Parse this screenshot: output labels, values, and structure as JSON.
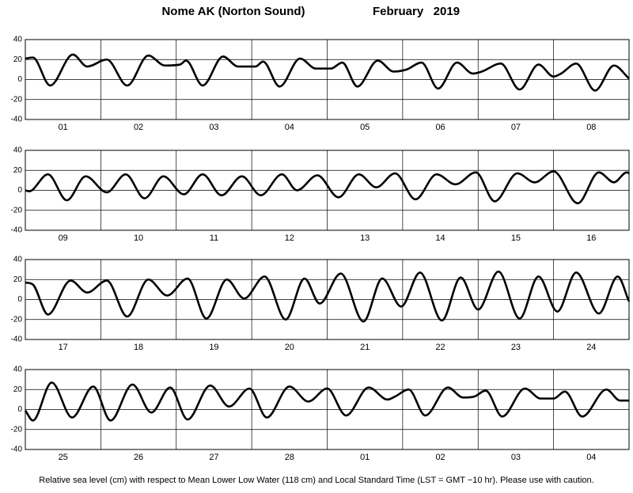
{
  "title": "Nome AK (Norton Sound)",
  "month": "February   2019",
  "note": "Relative sea level (cm) with respect to Mean Lower Low Water (118 cm) and Local Standard Time (LST = GMT −10 hr). Please use with caution.",
  "chart_data": [
    {
      "type": "line",
      "categories": [
        "01",
        "02",
        "03",
        "04",
        "05",
        "06",
        "07",
        "08"
      ],
      "xlim": [
        0,
        8
      ],
      "xticks": [
        0,
        1,
        2,
        3,
        4,
        5,
        6,
        7,
        8
      ],
      "ylim": [
        -40,
        40
      ],
      "yticks": [
        -40,
        -20,
        0,
        20,
        40
      ],
      "grid": true,
      "x": [
        0,
        0.1,
        0.33,
        0.63,
        0.82,
        1.08,
        1.35,
        1.63,
        1.85,
        2.05,
        2.13,
        2.35,
        2.62,
        2.82,
        3.05,
        3.15,
        3.37,
        3.64,
        3.85,
        4.05,
        4.2,
        4.4,
        4.67,
        4.88,
        5.05,
        5.25,
        5.47,
        5.72,
        5.93,
        6.05,
        6.3,
        6.55,
        6.8,
        7.0,
        7.1,
        7.3,
        7.55,
        7.8,
        8.0
      ],
      "series": [
        {
          "color": "#000000",
          "values": [
            21,
            22,
            -6,
            25,
            13,
            20,
            -6,
            24,
            14,
            15,
            19,
            -6,
            23,
            13,
            13,
            18,
            -7,
            21,
            11,
            11,
            17,
            -7,
            19,
            8,
            10,
            17,
            -9,
            17,
            6,
            8,
            16,
            -10,
            15,
            3,
            6,
            16,
            -11,
            14,
            1
          ]
        }
      ]
    },
    {
      "type": "line",
      "categories": [
        "09",
        "10",
        "11",
        "12",
        "13",
        "14",
        "15",
        "16"
      ],
      "xlim": [
        0,
        8
      ],
      "xticks": [
        0,
        1,
        2,
        3,
        4,
        5,
        6,
        7,
        8
      ],
      "ylim": [
        -40,
        40
      ],
      "yticks": [
        -40,
        -20,
        0,
        20,
        40
      ],
      "grid": true,
      "x": [
        0,
        0.05,
        0.3,
        0.55,
        0.8,
        1.08,
        1.33,
        1.58,
        1.83,
        2.1,
        2.35,
        2.6,
        2.87,
        3.12,
        3.4,
        3.6,
        3.87,
        4.15,
        4.42,
        4.65,
        4.9,
        5.17,
        5.45,
        5.7,
        5.97,
        6.22,
        6.52,
        6.75,
        7.0,
        7.32,
        7.6,
        7.8,
        7.97,
        8.0
      ],
      "series": [
        {
          "color": "#000000",
          "values": [
            0,
            -1,
            16,
            -10,
            14,
            -2,
            16,
            -8,
            14,
            -4,
            16,
            -5,
            14,
            -5,
            16,
            0,
            15,
            -7,
            16,
            3,
            17,
            -9,
            16,
            6,
            18,
            -11,
            17,
            8,
            19,
            -13,
            18,
            8,
            18,
            17
          ]
        }
      ]
    },
    {
      "type": "line",
      "categories": [
        "17",
        "18",
        "19",
        "20",
        "21",
        "22",
        "23",
        "24"
      ],
      "xlim": [
        0,
        8
      ],
      "xticks": [
        0,
        1,
        2,
        3,
        4,
        5,
        6,
        7,
        8
      ],
      "ylim": [
        -40,
        40
      ],
      "yticks": [
        -40,
        -20,
        0,
        20,
        40
      ],
      "grid": true,
      "x": [
        0,
        0.1,
        0.3,
        0.6,
        0.82,
        1.08,
        1.35,
        1.63,
        1.88,
        2.15,
        2.4,
        2.67,
        2.9,
        3.17,
        3.45,
        3.7,
        3.9,
        4.18,
        4.48,
        4.73,
        4.98,
        5.23,
        5.52,
        5.77,
        6.0,
        6.27,
        6.55,
        6.8,
        7.05,
        7.3,
        7.6,
        7.85,
        8.0
      ],
      "series": [
        {
          "color": "#000000",
          "values": [
            17,
            15,
            -15,
            19,
            7,
            19,
            -17,
            20,
            4,
            21,
            -19,
            20,
            1,
            23,
            -20,
            21,
            -4,
            26,
            -22,
            21,
            -7,
            27,
            -21,
            22,
            -10,
            28,
            -19,
            23,
            -12,
            27,
            -14,
            23,
            -2
          ]
        }
      ]
    },
    {
      "type": "line",
      "categories": [
        "25",
        "26",
        "27",
        "28",
        "01",
        "02",
        "03",
        "04"
      ],
      "xlim": [
        0,
        8
      ],
      "xticks": [
        0,
        1,
        2,
        3,
        4,
        5,
        6,
        7,
        8
      ],
      "ylim": [
        -40,
        40
      ],
      "yticks": [
        -40,
        -20,
        0,
        20,
        40
      ],
      "grid": true,
      "x": [
        0,
        0.1,
        0.35,
        0.62,
        0.9,
        1.13,
        1.42,
        1.67,
        1.92,
        2.15,
        2.45,
        2.7,
        2.97,
        3.2,
        3.5,
        3.75,
        4.0,
        4.25,
        4.55,
        4.8,
        4.9,
        5.08,
        5.3,
        5.6,
        5.8,
        5.95,
        6.1,
        6.32,
        6.62,
        6.83,
        7.0,
        7.15,
        7.38,
        7.7,
        7.88,
        8.0
      ],
      "series": [
        {
          "color": "#000000",
          "values": [
            -1,
            -11,
            27,
            -8,
            23,
            -11,
            25,
            -3,
            22,
            -10,
            24,
            3,
            21,
            -8,
            23,
            8,
            21,
            -6,
            22,
            10,
            13,
            20,
            -6,
            22,
            12,
            13,
            19,
            -7,
            21,
            11,
            11,
            18,
            -7,
            20,
            9,
            9
          ]
        }
      ]
    }
  ]
}
